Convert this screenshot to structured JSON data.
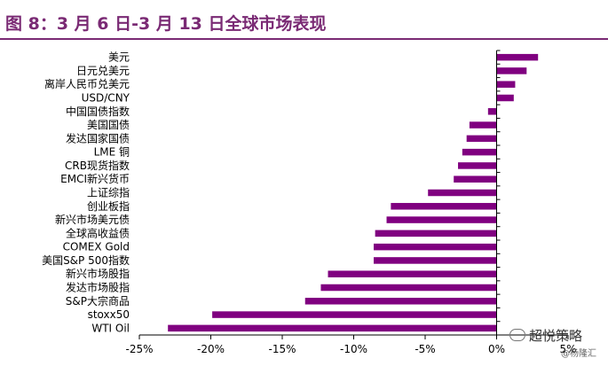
{
  "title": "图 8：3 月 6 日-3 月 13 日全球市场表现",
  "colors": {
    "bar": "#800080",
    "title": "#7a2a74",
    "axis": "#000000"
  },
  "chart_data": {
    "type": "bar",
    "orientation": "horizontal",
    "categories": [
      "美元",
      "日元兑美元",
      "离岸人民币兑美元",
      "USD/CNY",
      "中国国债指数",
      "美国国债",
      "发达国家国债",
      "LME 铜",
      "CRB现货指数",
      "EMCI新兴货币",
      "上证综指",
      "创业板指",
      "新兴市场美元债",
      "全球高收益债",
      "COMEX Gold",
      "美国S&P 500指数",
      "新兴市场股指",
      "发达市场股指",
      "S&P大宗商品",
      "stoxx50",
      "WTI  Oil"
    ],
    "values": [
      2.9,
      2.1,
      1.3,
      1.2,
      -0.6,
      -1.9,
      -2.1,
      -2.4,
      -2.7,
      -3.0,
      -4.8,
      -7.4,
      -7.7,
      -8.5,
      -8.6,
      -8.6,
      -11.8,
      -12.3,
      -13.4,
      -19.9,
      -23.0
    ],
    "xlim": [
      -25,
      5
    ],
    "xticks": [
      "-25%",
      "-20%",
      "-15%",
      "-10%",
      "-5%",
      "0%",
      "5%"
    ],
    "xlabel": "",
    "ylabel": "",
    "grid": false,
    "legend": "none"
  },
  "watermark": {
    "line1": "超悦策略",
    "line2": "@杨隆汇"
  }
}
